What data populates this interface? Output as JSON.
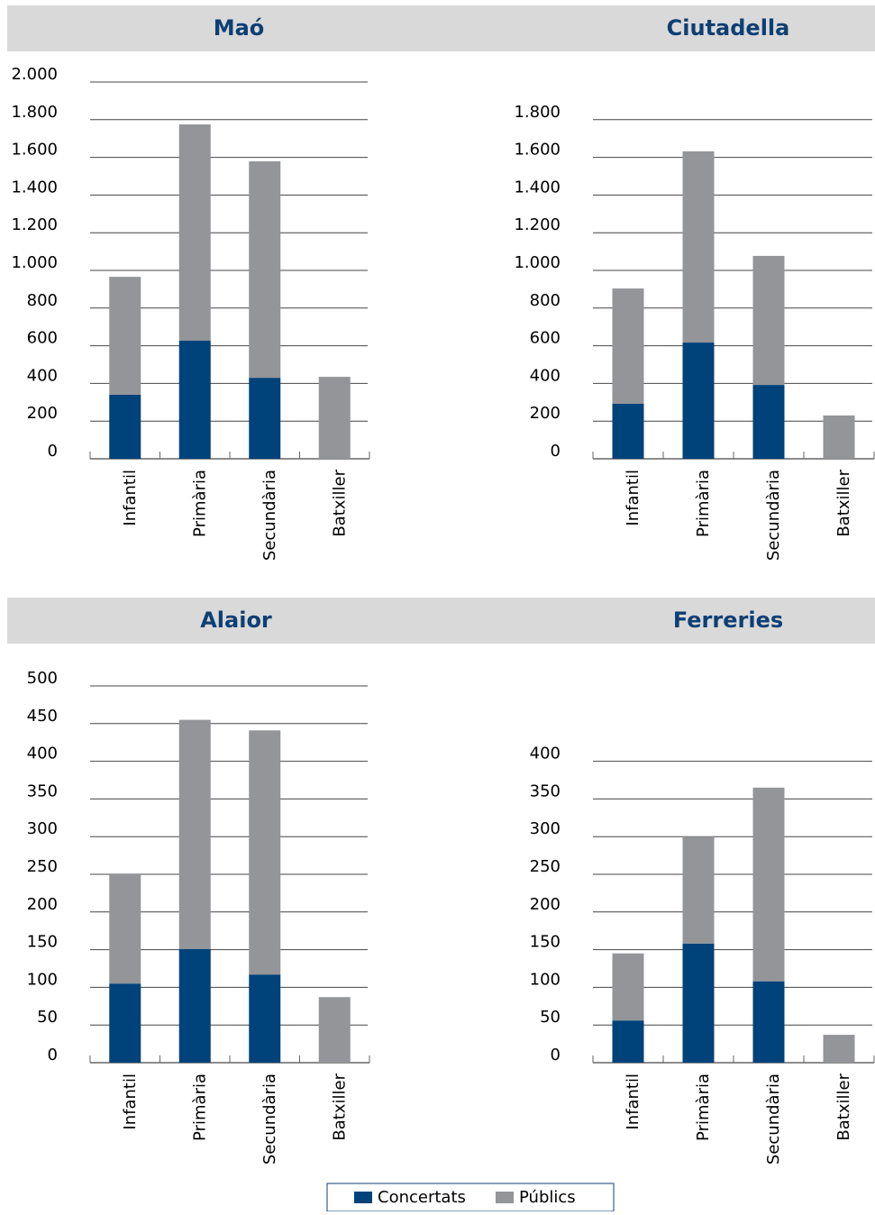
{
  "chart_data": [
    {
      "type": "bar",
      "stacked": true,
      "title": "Maó",
      "categories": [
        "Infantil",
        "Primària",
        "Secundària",
        "Batxiller"
      ],
      "series": [
        {
          "name": "Concertats",
          "color": "#00427a",
          "values": [
            340,
            627,
            430,
            0
          ]
        },
        {
          "name": "Públics",
          "color": "#939598",
          "values": [
            626,
            1148,
            1149,
            435
          ]
        }
      ],
      "ylim": [
        0,
        2000
      ],
      "yticks": [
        0,
        200,
        400,
        600,
        800,
        {
          "value": 1000,
          "label": "1.000"
        },
        {
          "value": 1200,
          "label": "1.200"
        },
        {
          "value": 1400,
          "label": "1.400"
        },
        {
          "value": 1600,
          "label": "1.600"
        },
        {
          "value": 1800,
          "label": "1.800"
        },
        {
          "value": 2000,
          "label": "2.000"
        }
      ],
      "grid": true
    },
    {
      "type": "bar",
      "stacked": true,
      "title": "Ciutadella",
      "categories": [
        "Infantil",
        "Primària",
        "Secundària",
        "Batxiller"
      ],
      "series": [
        {
          "color": "#00427a",
          "values": [
            292,
            617,
            392,
            0
          ]
        },
        {
          "color": "#939598",
          "values": [
            612,
            1015,
            685,
            230
          ]
        }
      ],
      "ylim": [
        0,
        1800
      ],
      "yticks": [
        0,
        200,
        400,
        600,
        800,
        {
          "value": 1000,
          "label": "1.000"
        },
        {
          "value": 1200,
          "label": "1.200"
        },
        {
          "value": 1400,
          "label": "1.400"
        },
        {
          "value": 1600,
          "label": "1.600"
        },
        {
          "value": 1800,
          "label": "1.800"
        }
      ],
      "grid": true
    },
    {
      "type": "bar",
      "stacked": true,
      "title": "Alaior",
      "categories": [
        "Infantil",
        "Primària",
        "Secundària",
        "Batxiller"
      ],
      "series": [
        {
          "color": "#00427a",
          "values": [
            105,
            151,
            117,
            0
          ]
        },
        {
          "color": "#939598",
          "values": [
            146,
            304,
            324,
            87
          ]
        }
      ],
      "ylim": [
        0,
        500
      ],
      "yticks": [
        0,
        50,
        100,
        150,
        200,
        250,
        300,
        350,
        400,
        450,
        500
      ],
      "grid": true
    },
    {
      "type": "bar",
      "stacked": true,
      "title": "Ferreries",
      "categories": [
        "Infantil",
        "Primària",
        "Secundària",
        "Batxiller"
      ],
      "series": [
        {
          "color": "#00427a",
          "values": [
            56,
            158,
            108,
            0
          ]
        },
        {
          "color": "#939598",
          "values": [
            89,
            142,
            257,
            37
          ]
        }
      ],
      "ylim": [
        0,
        400
      ],
      "yticks": [
        0,
        50,
        100,
        150,
        200,
        250,
        300,
        350,
        400
      ],
      "grid": true
    }
  ]
}
